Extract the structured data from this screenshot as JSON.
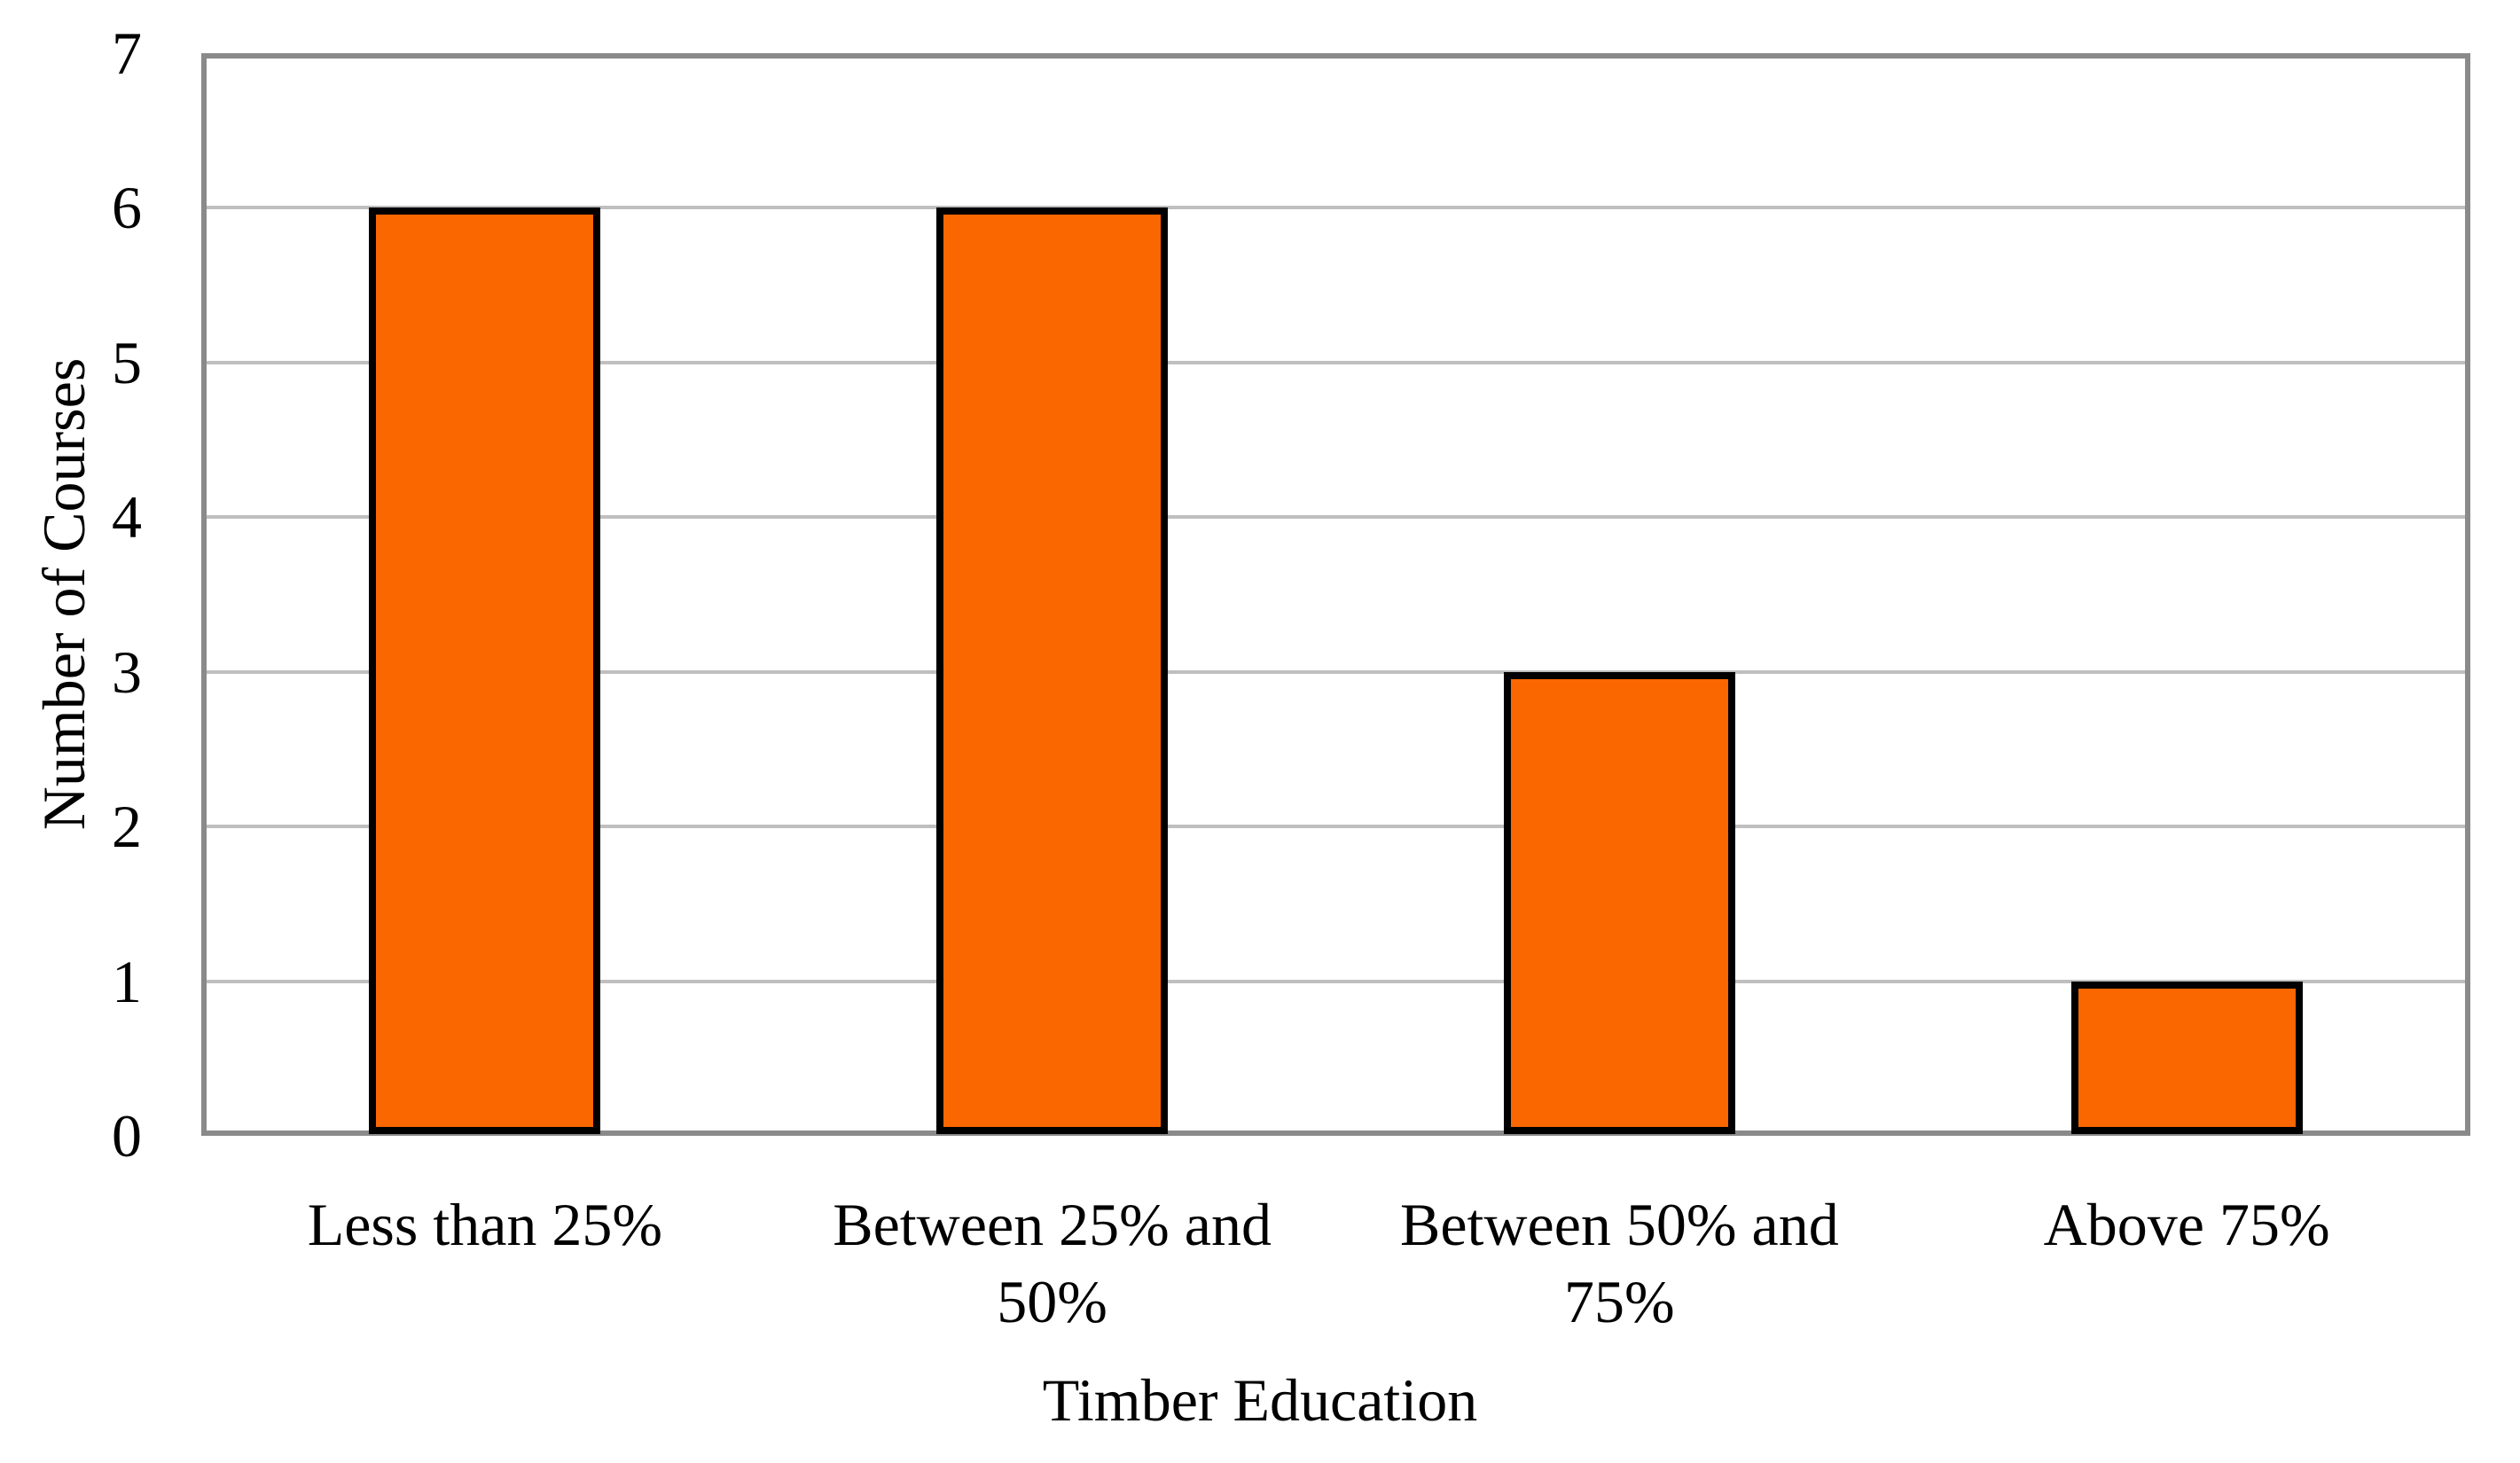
{
  "chart_data": {
    "type": "bar",
    "categories": [
      "Less than 25%",
      "Between 25% and 50%",
      "Between 50% and 75%",
      "Above 75%"
    ],
    "values": [
      6,
      6,
      3,
      1
    ],
    "xlabel": "Timber Education",
    "ylabel": "Number of Courses",
    "ylim": [
      0,
      7
    ],
    "yticks": [
      0,
      1,
      2,
      3,
      4,
      5,
      6,
      7
    ],
    "grid": true,
    "legend": false,
    "colors": {
      "background": "#FFFFFF",
      "text": "#000000",
      "bar_fill": "#FA6600",
      "bar_border": "#000000",
      "gridline": "#BFBFBF",
      "axis_frame": "#8A8A8A"
    }
  }
}
